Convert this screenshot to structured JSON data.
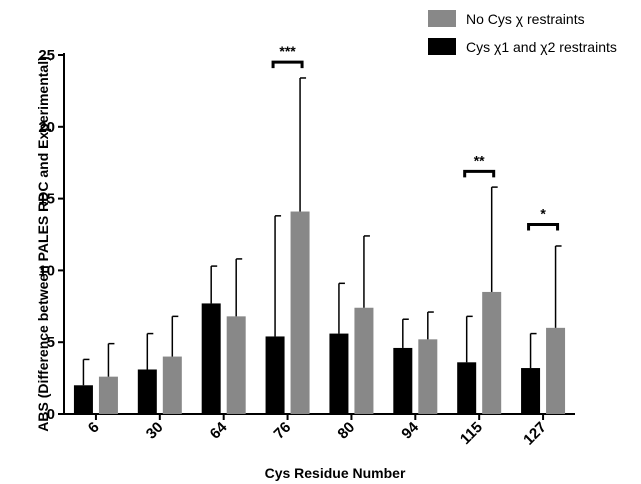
{
  "chart_data": {
    "type": "bar",
    "xlabel": "Cys Residue Number",
    "ylabel": "ABS (Difference between PALES RDC and Experimental)",
    "ylim": [
      0,
      25
    ],
    "yticks": [
      0,
      5,
      10,
      15,
      20,
      25
    ],
    "categories": [
      "6",
      "30",
      "64",
      "76",
      "80",
      "94",
      "115",
      "127"
    ],
    "grid": false,
    "legend_position": "top-right",
    "series": [
      {
        "name": "Cys χ1 and χ2 restraints",
        "color": "#000000",
        "values": [
          2.0,
          3.1,
          7.7,
          5.4,
          5.6,
          4.6,
          3.6,
          3.2
        ],
        "errors": [
          1.8,
          2.5,
          2.6,
          8.4,
          3.5,
          2.0,
          3.2,
          2.4
        ]
      },
      {
        "name": "No Cys χ restraints",
        "color": "#888888",
        "values": [
          2.6,
          4.0,
          6.8,
          14.1,
          7.4,
          5.2,
          8.5,
          6.0
        ],
        "errors": [
          2.3,
          2.8,
          4.0,
          9.3,
          5.0,
          1.9,
          7.3,
          5.7
        ]
      }
    ],
    "significance": [
      {
        "category": "76",
        "label": "***",
        "y": 24.5
      },
      {
        "category": "115",
        "label": "**",
        "y": 16.9
      },
      {
        "category": "127",
        "label": "*",
        "y": 13.2
      }
    ]
  }
}
